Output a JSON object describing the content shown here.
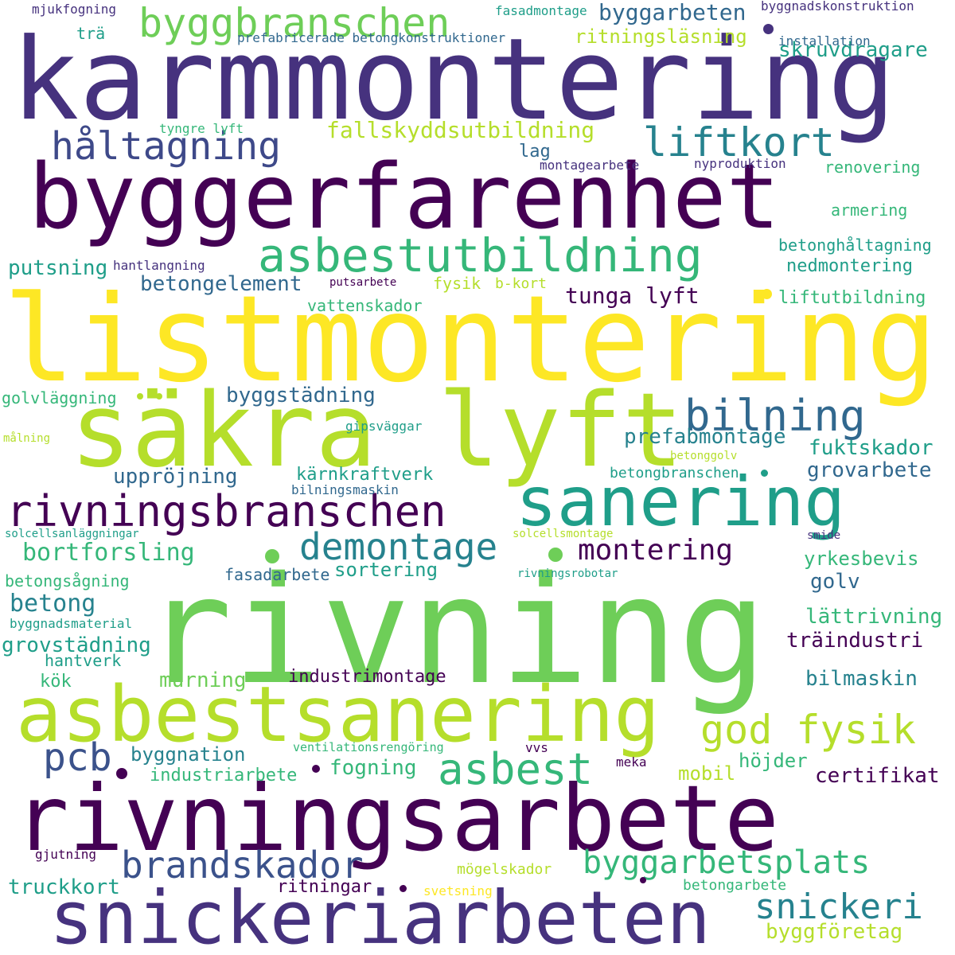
{
  "colors": {
    "background": "#ffffff",
    "dark_purple": "#440154",
    "indigo": "#3b528b",
    "blue": "#31688e",
    "teal_blue": "#26828e",
    "teal": "#1f9e89",
    "green_teal": "#35b779",
    "green": "#6ece58",
    "yellow_green": "#b5de2b",
    "yellow": "#fde725"
  },
  "words": [
    {
      "text": "karmmontering",
      "color": "#46327e"
    },
    {
      "text": "byggerfarenhet",
      "color": "#440154"
    },
    {
      "text": "listmontering",
      "color": "#fde725"
    },
    {
      "text": "säkra lyft",
      "color": "#b5de2b"
    },
    {
      "text": "rivning",
      "color": "#6ece58"
    },
    {
      "text": "asbestsanering",
      "color": "#b5de2b"
    },
    {
      "text": "rivningsarbete",
      "color": "#440154"
    },
    {
      "text": "snickeriarbeten",
      "color": "#46327e"
    },
    {
      "text": "byggbranschen",
      "color": "#6ece58"
    },
    {
      "text": "håltagning",
      "color": "#3e4989"
    },
    {
      "text": "liftkort",
      "color": "#26828e"
    },
    {
      "text": "asbestutbildning",
      "color": "#35b779"
    },
    {
      "text": "sanering",
      "color": "#1f9e89"
    },
    {
      "text": "rivningsbranschen",
      "color": "#440154"
    },
    {
      "text": "bilning",
      "color": "#31688e"
    },
    {
      "text": "demontage",
      "color": "#26828e"
    },
    {
      "text": "montering",
      "color": "#440154"
    },
    {
      "text": "god fysik",
      "color": "#b5de2b"
    },
    {
      "text": "asbest",
      "color": "#35b779"
    },
    {
      "text": "pcb",
      "color": "#3b528b"
    },
    {
      "text": "brandskador",
      "color": "#3b528b"
    },
    {
      "text": "byggarbetsplats",
      "color": "#35b779"
    },
    {
      "text": "snickeri",
      "color": "#26828e"
    },
    {
      "text": "fallskyddsutbildning",
      "color": "#b5de2b"
    },
    {
      "text": "byggarbeten",
      "color": "#31688e"
    },
    {
      "text": "skruvdragare",
      "color": "#1f9e89"
    },
    {
      "text": "ritningsläsning",
      "color": "#b5de2b"
    },
    {
      "text": "tunga lyft",
      "color": "#440154"
    },
    {
      "text": "betongelement",
      "color": "#31688e"
    },
    {
      "text": "byggstädning",
      "color": "#31688e"
    },
    {
      "text": "prefabmontage",
      "color": "#26828e"
    },
    {
      "text": "fuktskador",
      "color": "#1f9e89"
    },
    {
      "text": "grovarbete",
      "color": "#31688e"
    },
    {
      "text": "uppröjning",
      "color": "#31688e"
    },
    {
      "text": "kärnkraftverk",
      "color": "#1f9e89"
    },
    {
      "text": "bortforsling",
      "color": "#35b779"
    },
    {
      "text": "betong",
      "color": "#26828e"
    },
    {
      "text": "grovstädning",
      "color": "#1f9e89"
    },
    {
      "text": "murning",
      "color": "#6ece58"
    },
    {
      "text": "industrimontage",
      "color": "#440154"
    },
    {
      "text": "bilmaskin",
      "color": "#26828e"
    },
    {
      "text": "träindustri",
      "color": "#440154"
    },
    {
      "text": "lättrivning",
      "color": "#35b779"
    },
    {
      "text": "golv",
      "color": "#31688e"
    },
    {
      "text": "yrkesbevis",
      "color": "#35b779"
    },
    {
      "text": "sortering",
      "color": "#1f9e89"
    },
    {
      "text": "fasadarbete",
      "color": "#31688e"
    },
    {
      "text": "betongsågning",
      "color": "#35b779"
    },
    {
      "text": "hantverk",
      "color": "#1f9e89"
    },
    {
      "text": "kök",
      "color": "#35b779"
    },
    {
      "text": "byggnation",
      "color": "#26828e"
    },
    {
      "text": "industriarbete",
      "color": "#35b779"
    },
    {
      "text": "fogning",
      "color": "#35b779"
    },
    {
      "text": "mobil",
      "color": "#b5de2b"
    },
    {
      "text": "höjder",
      "color": "#35b779"
    },
    {
      "text": "certifikat",
      "color": "#440154"
    },
    {
      "text": "truckkort",
      "color": "#1f9e89"
    },
    {
      "text": "ritningar",
      "color": "#440154"
    },
    {
      "text": "byggföretag",
      "color": "#b5de2b"
    },
    {
      "text": "betongarbete",
      "color": "#35b779"
    },
    {
      "text": "mögelskador",
      "color": "#b5de2b"
    },
    {
      "text": "svetsning",
      "color": "#fde725"
    },
    {
      "text": "gjutning",
      "color": "#440154"
    },
    {
      "text": "byggnadsmaterial",
      "color": "#1f9e89"
    },
    {
      "text": "ventilationsrengöring",
      "color": "#35b779"
    },
    {
      "text": "vvs",
      "color": "#440154"
    },
    {
      "text": "meka",
      "color": "#440154"
    },
    {
      "text": "mjukfogning",
      "color": "#46327e"
    },
    {
      "text": "fasadmontage",
      "color": "#1f9e89"
    },
    {
      "text": "byggnadskonstruktion",
      "color": "#46327e"
    },
    {
      "text": "trä",
      "color": "#1f9e89"
    },
    {
      "text": "prefabricerade betongkonstruktioner",
      "color": "#31688e"
    },
    {
      "text": "installation",
      "color": "#31688e"
    },
    {
      "text": "tyngre lyft",
      "color": "#35b779"
    },
    {
      "text": "lag",
      "color": "#31688e"
    },
    {
      "text": "montagearbete",
      "color": "#46327e"
    },
    {
      "text": "nyproduktion",
      "color": "#46327e"
    },
    {
      "text": "renovering",
      "color": "#35b779"
    },
    {
      "text": "armering",
      "color": "#35b779"
    },
    {
      "text": "betonghåltagning",
      "color": "#1f9e89"
    },
    {
      "text": "nedmontering",
      "color": "#1f9e89"
    },
    {
      "text": "putsning",
      "color": "#1f9e89"
    },
    {
      "text": "hantlangning",
      "color": "#46327e"
    },
    {
      "text": "putsarbete",
      "color": "#440154"
    },
    {
      "text": "fysik",
      "color": "#b5de2b"
    },
    {
      "text": "b-kort",
      "color": "#b5de2b"
    },
    {
      "text": "vattenskador",
      "color": "#35b779"
    },
    {
      "text": "liftutbildning",
      "color": "#35b779"
    },
    {
      "text": "golvläggning",
      "color": "#35b779"
    },
    {
      "text": "gipsväggar",
      "color": "#1f9e89"
    },
    {
      "text": "målning",
      "color": "#b5de2b"
    },
    {
      "text": "betonggolv",
      "color": "#b5de2b"
    },
    {
      "text": "bilningsmaskin",
      "color": "#31688e"
    },
    {
      "text": "betongbranschen",
      "color": "#1f9e89"
    },
    {
      "text": "solcellsanläggningar",
      "color": "#1f9e89"
    },
    {
      "text": "solcellsmontage",
      "color": "#b5de2b"
    },
    {
      "text": "smide",
      "color": "#46327e"
    },
    {
      "text": "rivningsrobotar",
      "color": "#1f9e89"
    }
  ]
}
